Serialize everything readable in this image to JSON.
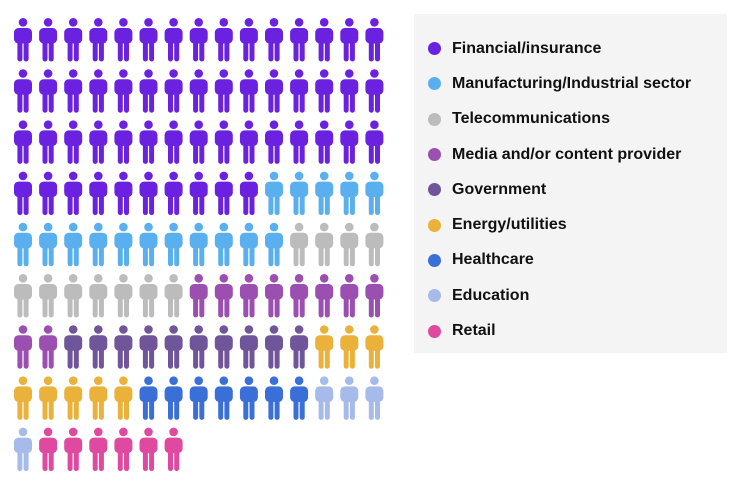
{
  "chart_data": {
    "type": "pictogram",
    "icon": "person-icon",
    "units_per_row": 15,
    "total_icons": 127,
    "categories": [
      {
        "name": "Financial/insurance",
        "count": 55,
        "color": "#6b22e0"
      },
      {
        "name": "Manufacturing/Industrial sector",
        "count": 16,
        "color": "#5ab0ef"
      },
      {
        "name": "Telecommunications",
        "count": 11,
        "color": "#bcbcbc"
      },
      {
        "name": "Media and/or content provider",
        "count": 10,
        "color": "#9b4fb0"
      },
      {
        "name": "Government",
        "count": 10,
        "color": "#6f5599"
      },
      {
        "name": "Energy/utilities",
        "count": 8,
        "color": "#eab23a"
      },
      {
        "name": "Healthcare",
        "count": 7,
        "color": "#3a6fd8"
      },
      {
        "name": "Education",
        "count": 4,
        "color": "#a6bbea"
      },
      {
        "name": "Retail",
        "count": 6,
        "color": "#df4aa0"
      }
    ],
    "legend_position": "right"
  }
}
